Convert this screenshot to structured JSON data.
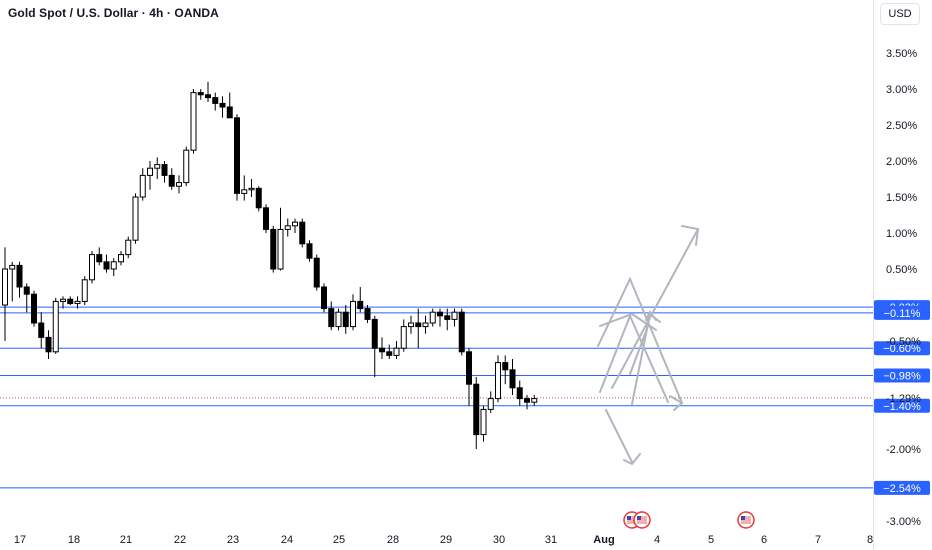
{
  "header": {
    "title": "Gold Spot / U.S. Dollar · 4h · OANDA",
    "currency": "USD"
  },
  "chart_data": {
    "type": "candlestick",
    "title": "Gold Spot / U.S. Dollar · 4h · OANDA",
    "scale": "percent",
    "ylim": [
      -3.1,
      3.9
    ],
    "yticks": [
      "3.50%",
      "3.00%",
      "2.50%",
      "2.00%",
      "1.50%",
      "1.00%",
      "0.50%",
      "-0.50%",
      "-1.29%",
      "-2.00%",
      "-3.00%"
    ],
    "ytick_values": [
      3.5,
      3.0,
      2.5,
      2.0,
      1.5,
      1.0,
      0.5,
      -0.5,
      -1.29,
      -2.0,
      -3.0
    ],
    "xticks": [
      "17",
      "18",
      "21",
      "22",
      "23",
      "24",
      "25",
      "28",
      "29",
      "30",
      "31",
      "Aug",
      "4",
      "5",
      "6",
      "7",
      "8"
    ],
    "levels": [
      {
        "value": -0.03,
        "label": "−0.03%"
      },
      {
        "value": -0.11,
        "label": "−0.11%"
      },
      {
        "value": -0.6,
        "label": "−0.60%"
      },
      {
        "value": -0.98,
        "label": "−0.98%"
      },
      {
        "value": -1.4,
        "label": "−1.40%"
      },
      {
        "value": -2.54,
        "label": "−2.54%"
      }
    ],
    "current_value": -1.29,
    "candles": [
      [
        0.0,
        0.8,
        -0.5,
        0.5
      ],
      [
        0.5,
        0.6,
        0.05,
        0.55
      ],
      [
        0.55,
        0.6,
        0.1,
        0.25
      ],
      [
        0.25,
        0.3,
        -0.1,
        0.15
      ],
      [
        0.15,
        0.2,
        -0.3,
        -0.25
      ],
      [
        -0.25,
        -0.1,
        -0.6,
        -0.45
      ],
      [
        -0.45,
        -0.35,
        -0.75,
        -0.65
      ],
      [
        -0.65,
        0.1,
        -0.68,
        0.05
      ],
      [
        0.05,
        0.12,
        -0.05,
        0.08
      ],
      [
        0.08,
        0.12,
        0.0,
        0.02
      ],
      [
        0.02,
        0.12,
        -0.05,
        0.05
      ],
      [
        0.05,
        0.4,
        0.0,
        0.35
      ],
      [
        0.35,
        0.75,
        0.3,
        0.7
      ],
      [
        0.7,
        0.8,
        0.55,
        0.6
      ],
      [
        0.6,
        0.7,
        0.45,
        0.5
      ],
      [
        0.5,
        0.65,
        0.4,
        0.6
      ],
      [
        0.6,
        0.75,
        0.55,
        0.7
      ],
      [
        0.7,
        0.95,
        0.65,
        0.9
      ],
      [
        0.9,
        1.55,
        0.85,
        1.5
      ],
      [
        1.5,
        1.9,
        1.45,
        1.8
      ],
      [
        1.8,
        2.0,
        1.6,
        1.9
      ],
      [
        1.9,
        2.05,
        1.75,
        1.95
      ],
      [
        1.95,
        2.0,
        1.7,
        1.8
      ],
      [
        1.8,
        1.9,
        1.6,
        1.65
      ],
      [
        1.65,
        1.8,
        1.55,
        1.7
      ],
      [
        1.7,
        2.2,
        1.65,
        2.15
      ],
      [
        2.15,
        3.0,
        2.1,
        2.95
      ],
      [
        2.95,
        3.0,
        2.85,
        2.92
      ],
      [
        2.92,
        3.1,
        2.82,
        2.88
      ],
      [
        2.88,
        2.95,
        2.7,
        2.8
      ],
      [
        2.8,
        2.9,
        2.6,
        2.75
      ],
      [
        2.75,
        2.95,
        2.65,
        2.6
      ],
      [
        2.6,
        2.65,
        1.45,
        1.55
      ],
      [
        1.55,
        1.8,
        1.45,
        1.6
      ],
      [
        1.6,
        1.75,
        1.5,
        1.62
      ],
      [
        1.62,
        1.65,
        1.3,
        1.35
      ],
      [
        1.35,
        1.4,
        1.0,
        1.05
      ],
      [
        1.05,
        1.1,
        0.45,
        0.5
      ],
      [
        0.5,
        1.35,
        0.48,
        1.05
      ],
      [
        1.05,
        1.2,
        0.95,
        1.1
      ],
      [
        1.1,
        1.2,
        1.0,
        1.15
      ],
      [
        1.15,
        1.2,
        0.8,
        0.85
      ],
      [
        0.85,
        0.9,
        0.6,
        0.65
      ],
      [
        0.65,
        0.7,
        0.2,
        0.25
      ],
      [
        0.25,
        0.3,
        -0.1,
        -0.05
      ],
      [
        -0.05,
        0.05,
        -0.35,
        -0.3
      ],
      [
        -0.3,
        -0.05,
        -0.35,
        -0.1
      ],
      [
        -0.1,
        0.0,
        -0.4,
        -0.3
      ],
      [
        -0.3,
        0.15,
        -0.35,
        0.05
      ],
      [
        0.05,
        0.25,
        -0.1,
        -0.05
      ],
      [
        -0.05,
        0.0,
        -0.25,
        -0.2
      ],
      [
        -0.2,
        -0.15,
        -1.0,
        -0.6
      ],
      [
        -0.6,
        -0.45,
        -0.75,
        -0.65
      ],
      [
        -0.65,
        -0.55,
        -0.75,
        -0.7
      ],
      [
        -0.7,
        -0.5,
        -0.75,
        -0.6
      ],
      [
        -0.6,
        -0.2,
        -0.65,
        -0.3
      ],
      [
        -0.3,
        -0.15,
        -0.4,
        -0.25
      ],
      [
        -0.25,
        -0.05,
        -0.6,
        -0.3
      ],
      [
        -0.3,
        -0.15,
        -0.4,
        -0.25
      ],
      [
        -0.25,
        -0.05,
        -0.3,
        -0.1
      ],
      [
        -0.1,
        -0.05,
        -0.3,
        -0.15
      ],
      [
        -0.15,
        -0.05,
        -0.35,
        -0.2
      ],
      [
        -0.2,
        -0.05,
        -0.3,
        -0.1
      ],
      [
        -0.1,
        -0.05,
        -0.7,
        -0.65
      ],
      [
        -0.65,
        -0.6,
        -1.4,
        -1.1
      ],
      [
        -1.1,
        -1.0,
        -2.0,
        -1.8
      ],
      [
        -1.8,
        -1.4,
        -1.9,
        -1.45
      ],
      [
        -1.45,
        -1.2,
        -1.5,
        -1.3
      ],
      [
        -1.3,
        -0.7,
        -1.35,
        -0.8
      ],
      [
        -0.8,
        -0.7,
        -1.1,
        -0.9
      ],
      [
        -0.9,
        -0.75,
        -1.25,
        -1.15
      ],
      [
        -1.15,
        -1.05,
        -1.4,
        -1.3
      ],
      [
        -1.3,
        -1.25,
        -1.45,
        -1.35
      ],
      [
        -1.35,
        -1.25,
        -1.4,
        -1.3
      ]
    ],
    "projection_arrows": [
      {
        "points": [
          [
            -1.3,
            -1.0
          ],
          [
            -1.1,
            0.0
          ]
        ]
      },
      {
        "points": [
          [
            -0.55,
            -1.8
          ],
          [
            1.15,
            2.3
          ]
        ]
      },
      {
        "points": [
          [
            -0.2,
            0.0
          ],
          [
            -0.9,
            -1.2
          ]
        ]
      }
    ],
    "events_icons": [
      "us-flag-icon",
      "us-flag-icon",
      "us-flag-icon"
    ]
  }
}
